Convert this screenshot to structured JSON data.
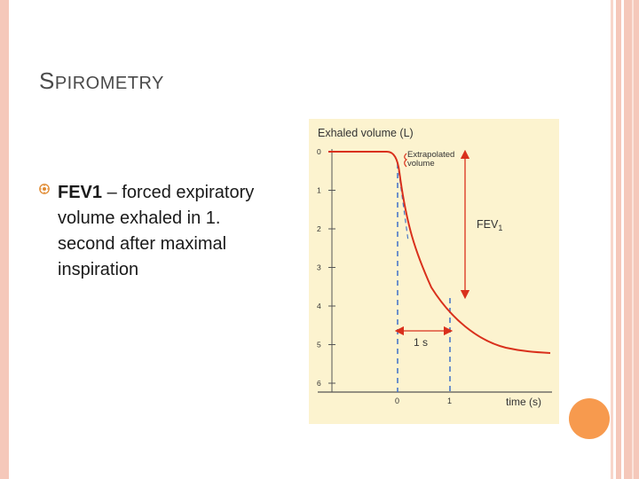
{
  "slide": {
    "title_first": "S",
    "title_rest": "PIROMETRY",
    "bullet_term": "FEV1",
    "bullet_rest": " – forced expiratory volume exhaled in 1. second after maximal inspiration"
  },
  "diagram": {
    "y_axis_title": "Exhaled volume (L)",
    "x_axis_title": "time (s)",
    "y_ticks": [
      "0",
      "1",
      "2",
      "3",
      "4",
      "5",
      "6"
    ],
    "x_ticks": [
      "0",
      "1"
    ],
    "extrapolated_line1": "Extrapolated",
    "extrapolated_line2": "volume",
    "fev_label": "FEV",
    "fev_sub": "1",
    "interval_label": "1 s",
    "colors": {
      "curve": "#d9301c",
      "dashed": "#4a78c8",
      "axis": "#555555"
    }
  }
}
